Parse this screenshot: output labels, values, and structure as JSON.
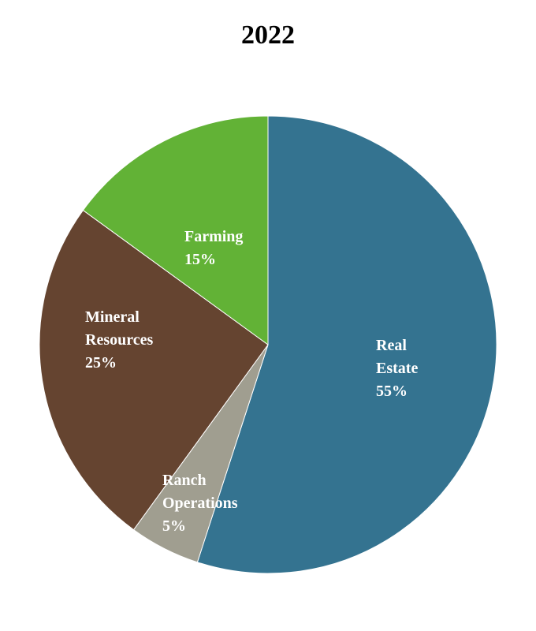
{
  "chart_data": {
    "type": "pie",
    "title": "2022",
    "start_angle_deg": 0,
    "direction": "clockwise",
    "slices": [
      {
        "label_lines": [
          "Real",
          "Estate"
        ],
        "value": 55,
        "value_label": "55%",
        "color": "#347390"
      },
      {
        "label_lines": [
          "Ranch",
          "Operations"
        ],
        "value": 5,
        "value_label": "5%",
        "color": "#a09e90"
      },
      {
        "label_lines": [
          "Mineral",
          "Resources"
        ],
        "value": 25,
        "value_label": "25%",
        "color": "#654430"
      },
      {
        "label_lines": [
          "Farming"
        ],
        "value": 15,
        "value_label": "15%",
        "color": "#62b236"
      }
    ]
  }
}
